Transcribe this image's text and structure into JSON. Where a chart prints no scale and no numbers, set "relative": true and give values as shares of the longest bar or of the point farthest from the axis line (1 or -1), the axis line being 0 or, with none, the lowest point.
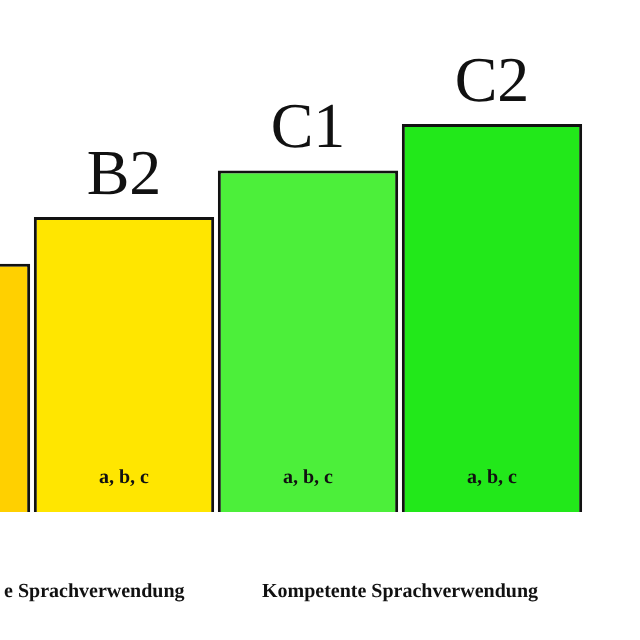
{
  "chart_data": {
    "type": "bar",
    "relative": true,
    "categories": [
      null,
      "B2",
      "C1",
      "C2"
    ],
    "values": [
      0.64,
      0.76,
      0.88,
      1
    ],
    "colors": [
      "#ffd000",
      "#ffe600",
      "#4cef3a",
      "#22e81a"
    ],
    "annotations": [
      "a, b, c",
      "a, b, c",
      "a, b, c",
      "e Sprachverwendung",
      "Kompetente Sprachverwendung"
    ]
  }
}
